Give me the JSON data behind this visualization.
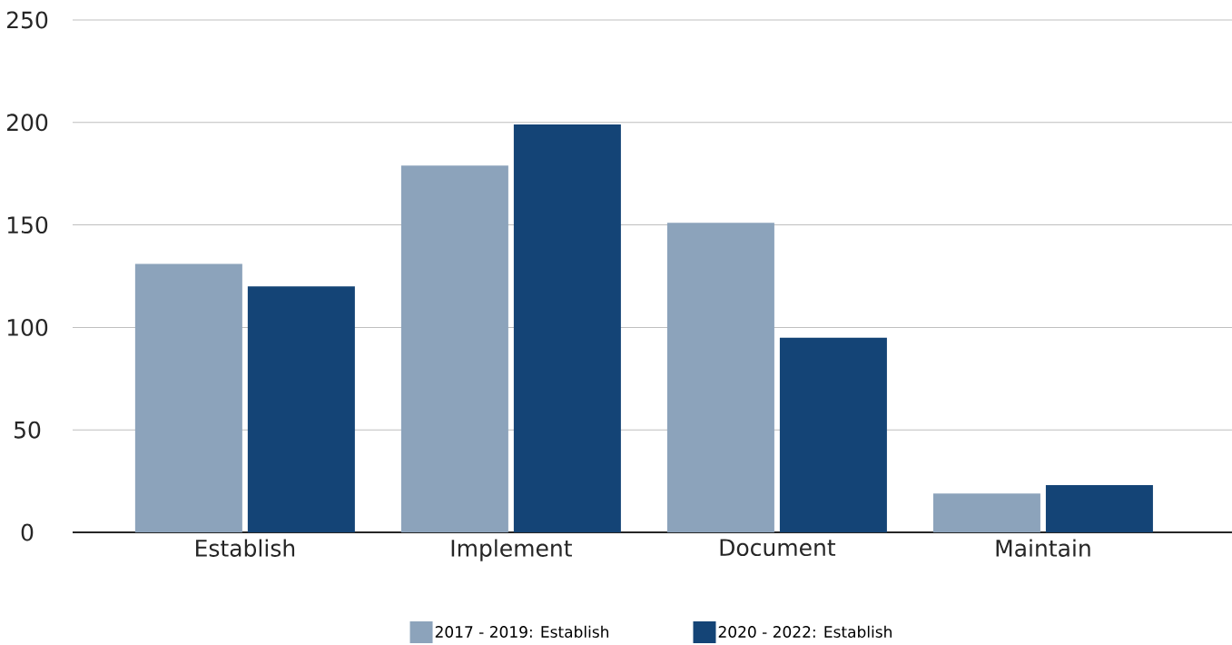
{
  "chart_data": {
    "type": "bar",
    "categories": [
      "Establish",
      "Implement",
      "Document",
      "Maintain"
    ],
    "series": [
      {
        "name": "2017 - 2019: Establish",
        "color": "#8ca3bb",
        "values": [
          131,
          179,
          151,
          19
        ]
      },
      {
        "name": "2020 - 2022: Establish",
        "color": "#144476",
        "values": [
          120,
          199,
          95,
          23
        ]
      }
    ],
    "ylim": [
      0,
      250
    ],
    "yticks": [
      0,
      50,
      100,
      150,
      200,
      250
    ],
    "grid": "y",
    "legend": "bottom"
  }
}
